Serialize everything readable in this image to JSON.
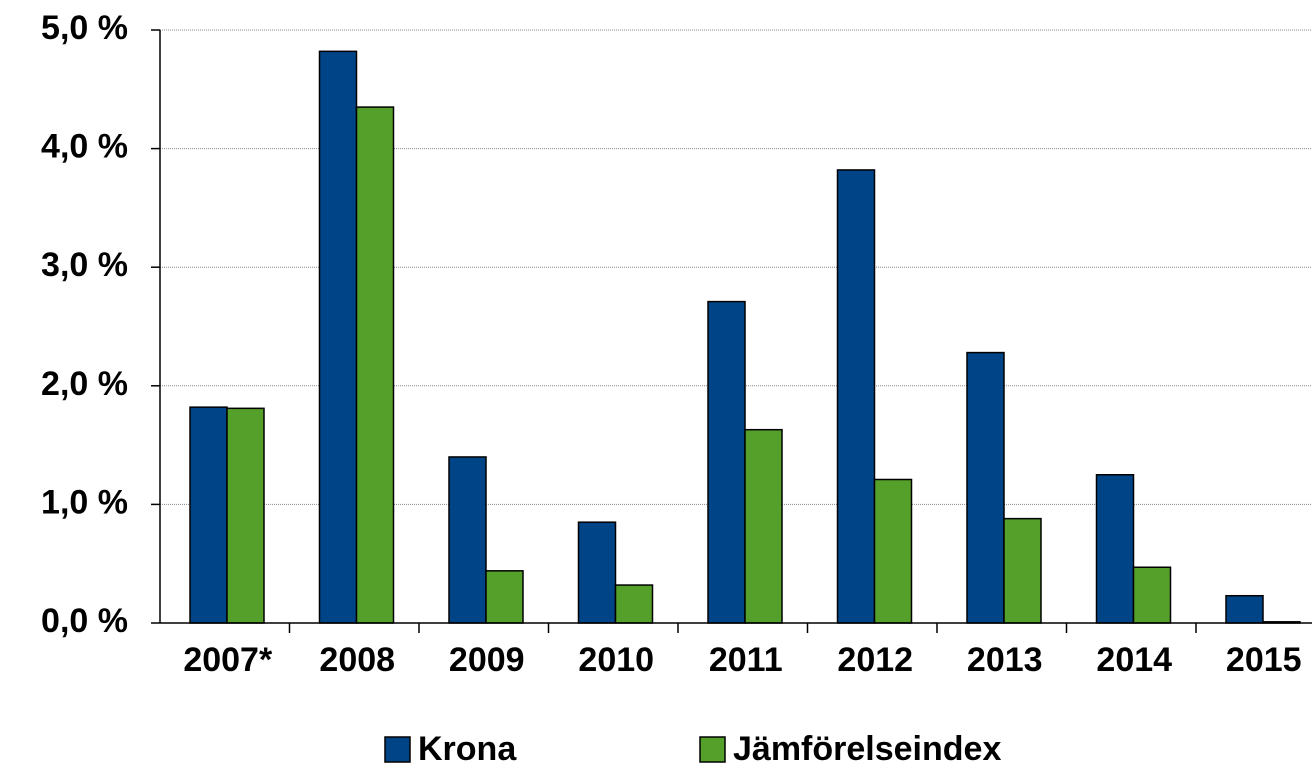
{
  "chart_data": {
    "type": "bar",
    "categories": [
      "2007*",
      "2008",
      "2009",
      "2010",
      "2011",
      "2012",
      "2013",
      "2014",
      "2015"
    ],
    "series": [
      {
        "name": "Krona",
        "color": "#004488",
        "values": [
          1.82,
          4.82,
          1.4,
          0.85,
          2.71,
          3.82,
          2.28,
          1.25,
          0.23
        ]
      },
      {
        "name": "Jämförelseindex",
        "color": "#55a02a",
        "values": [
          1.81,
          4.35,
          0.44,
          0.32,
          1.63,
          1.21,
          0.88,
          0.47,
          0.01
        ]
      }
    ],
    "ylim": [
      0,
      5
    ],
    "yticks": [
      {
        "value": 0,
        "label": "0,0 %"
      },
      {
        "value": 1,
        "label": "1,0 %"
      },
      {
        "value": 2,
        "label": "2,0 %"
      },
      {
        "value": 3,
        "label": "3,0 %"
      },
      {
        "value": 4,
        "label": "4,0 %"
      },
      {
        "value": 5,
        "label": "5,0 %"
      }
    ],
    "grid": true,
    "legend": "bottom"
  }
}
